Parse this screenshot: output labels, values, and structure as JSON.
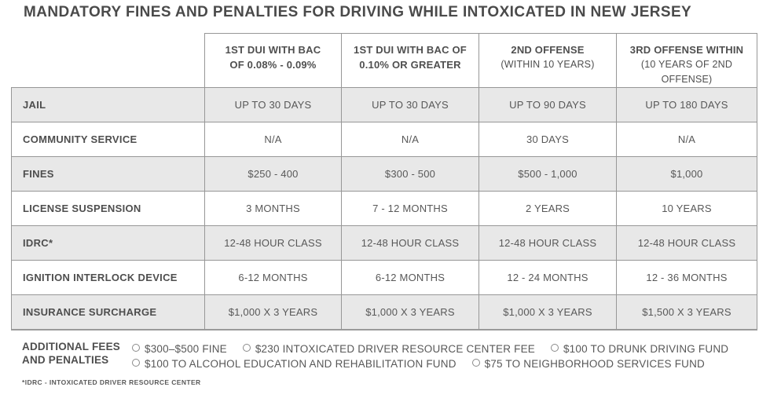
{
  "title": "MANDATORY FINES AND PENALTIES FOR DRIVING WHILE INTOXICATED IN NEW JERSEY",
  "colors": {
    "stripe_row": "#e8e8e8",
    "table_border": "#979797",
    "title_text": "#4a4a4a",
    "body_text": "#585858"
  },
  "chart_data": {
    "type": "table",
    "title": "MANDATORY FINES AND PENALTIES FOR DRIVING WHILE INTOXICATED IN NEW JERSEY",
    "column_headers": [
      {
        "line1": "1ST DUI WITH BAC",
        "line2": "OF 0.08% - 0.09%"
      },
      {
        "line1": "1ST DUI WITH BAC OF",
        "line2": "0.10% OR GREATER"
      },
      {
        "line1": "2ND OFFENSE",
        "line2": "(WITHIN 10 YEARS)"
      },
      {
        "line1": "3RD OFFENSE WITHIN",
        "line2": "(10 YEARS OF 2ND OFFENSE)"
      }
    ],
    "rows": [
      {
        "label": "JAIL",
        "values": [
          "UP TO 30 DAYS",
          "UP TO 30 DAYS",
          "UP TO 90 DAYS",
          "UP TO 180 DAYS"
        ]
      },
      {
        "label": "COMMUNITY SERVICE",
        "values": [
          "N/A",
          "N/A",
          "30 DAYS",
          "N/A"
        ]
      },
      {
        "label": "FINES",
        "values": [
          "$250 - 400",
          "$300 - 500",
          "$500 - 1,000",
          "$1,000"
        ]
      },
      {
        "label": "LICENSE SUSPENSION",
        "values": [
          "3 MONTHS",
          "7 - 12 MONTHS",
          "2 YEARS",
          "10 YEARS"
        ]
      },
      {
        "label": "IDRC*",
        "values": [
          "12-48 HOUR CLASS",
          "12-48 HOUR CLASS",
          "12-48 HOUR CLASS",
          "12-48 HOUR CLASS"
        ]
      },
      {
        "label": "IGNITION INTERLOCK DEVICE",
        "values": [
          "6-12 MONTHS",
          "6-12 MONTHS",
          "12 - 24 MONTHS",
          "12 - 36 MONTHS"
        ]
      },
      {
        "label": "INSURANCE SURCHARGE",
        "values": [
          "$1,000 X 3 YEARS",
          "$1,000 X 3 YEARS",
          "$1,000 X 3 YEARS",
          "$1,500 X 3 YEARS"
        ]
      }
    ]
  },
  "additional_fees": {
    "label_line1": "ADDITIONAL FEES",
    "label_line2": "AND PENALTIES",
    "bullet_icon": "circle-outline-icon",
    "items": [
      "$300–$500 FINE",
      "$230 INTOXICATED DRIVER RESOURCE CENTER FEE",
      "$100 TO DRUNK DRIVING FUND",
      "$100 TO ALCOHOL EDUCATION AND REHABILITATION FUND",
      "$75 TO NEIGHBORHOOD SERVICES FUND"
    ]
  },
  "footnote": "*IDRC - INTOXICATED DRIVER RESOURCE CENTER"
}
